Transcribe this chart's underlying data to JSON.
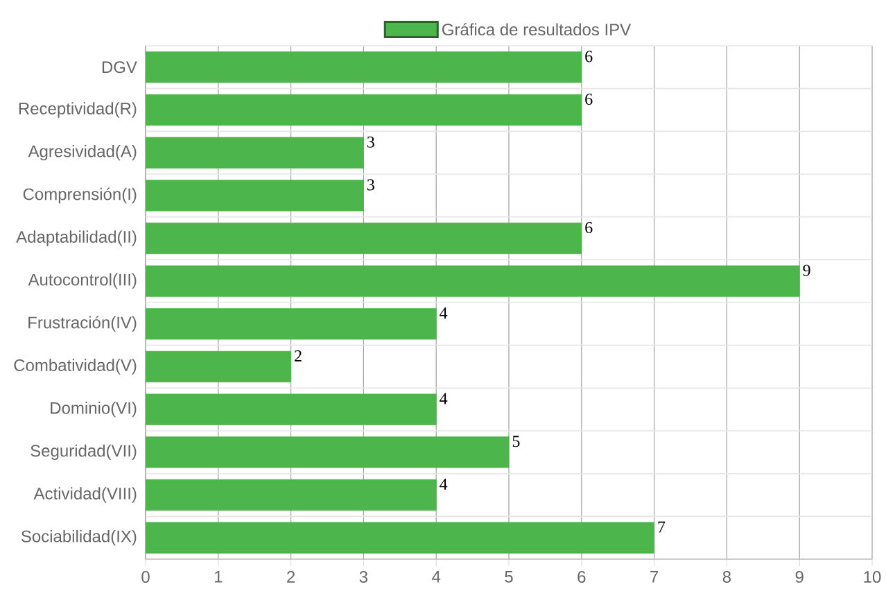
{
  "chart_data": {
    "type": "bar",
    "orientation": "horizontal",
    "categories": [
      "DGV",
      "Receptividad(R)",
      "Agresividad(A)",
      "Comprensión(I)",
      "Adaptabilidad(II)",
      "Autocontrol(III)",
      "Frustración(IV)",
      "Combatividad(V)",
      "Dominio(VI)",
      "Seguridad(VII)",
      "Actividad(VIII)",
      "Sociabilidad(IX)"
    ],
    "series": [
      {
        "name": "Gráfica de resultados IPV",
        "color": "#4cb54c",
        "values": [
          6,
          6,
          3,
          3,
          6,
          9,
          4,
          2,
          4,
          5,
          4,
          7
        ]
      }
    ],
    "xlim": [
      0,
      10
    ],
    "xticks": [
      0,
      1,
      2,
      3,
      4,
      5,
      6,
      7,
      8,
      9,
      10
    ],
    "grid": true,
    "legend": "top",
    "data_labels": true
  }
}
